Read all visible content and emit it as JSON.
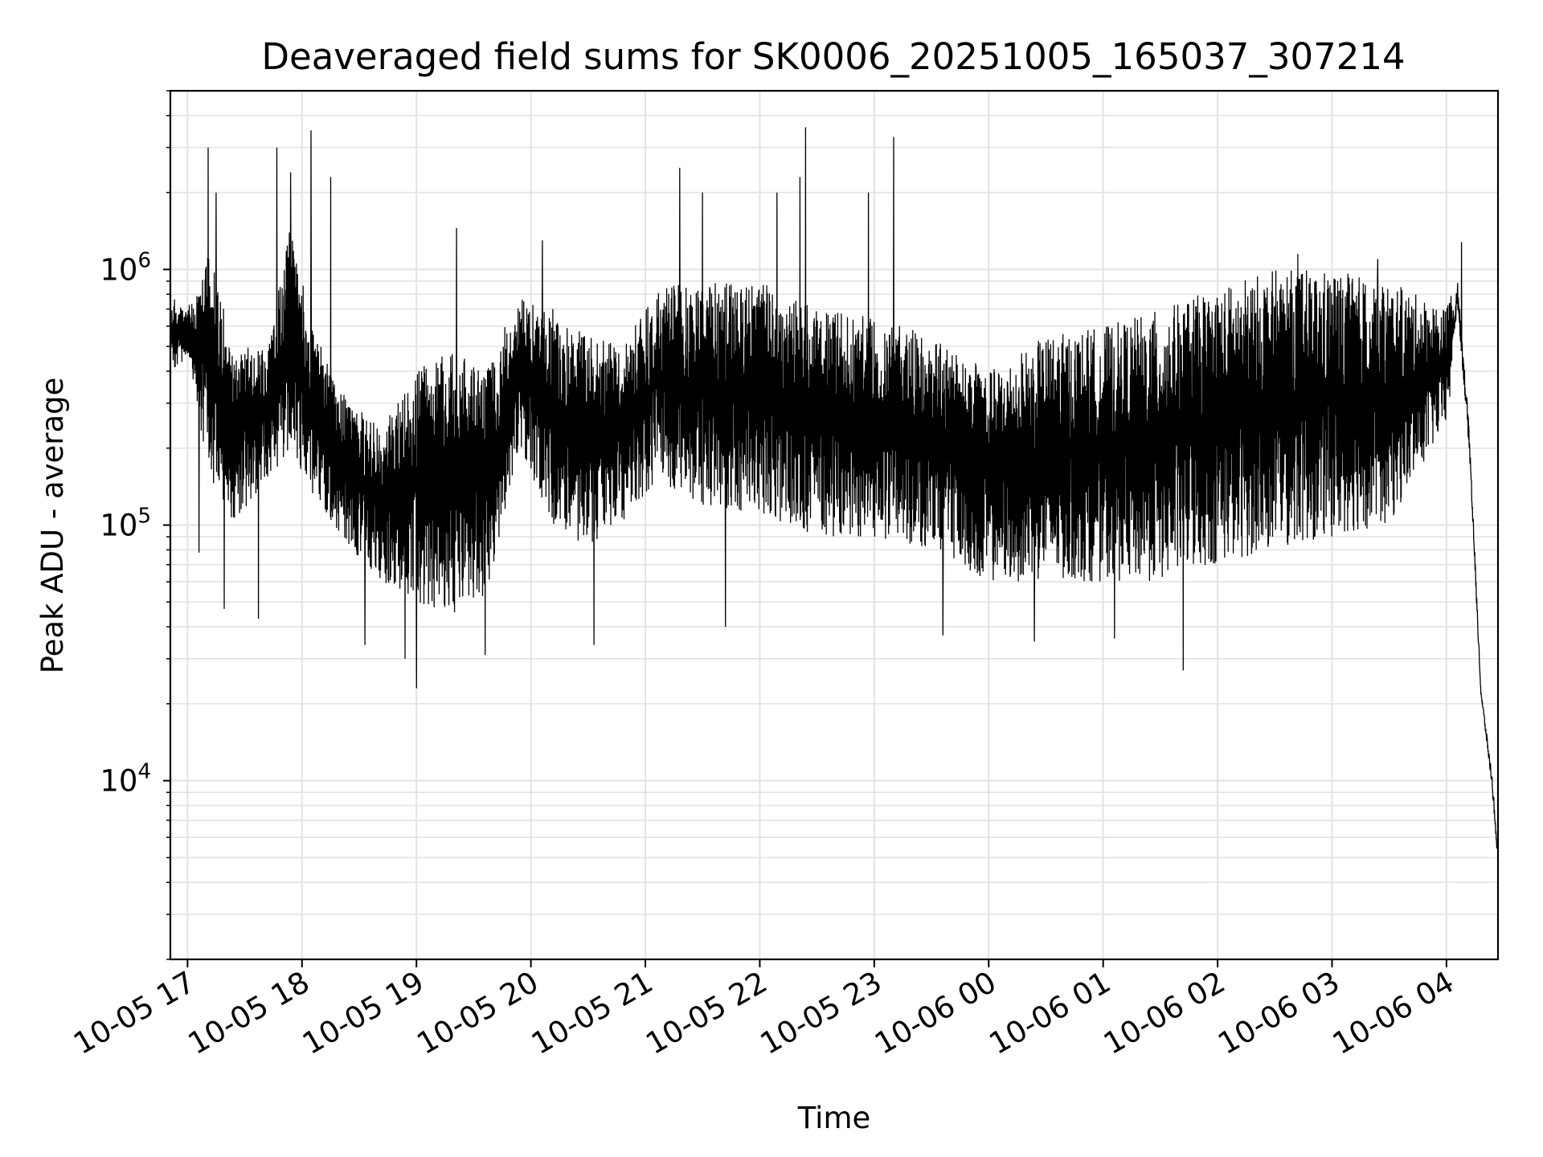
{
  "chart_data": {
    "type": "line",
    "title": "Deaveraged field sums for SK0006_20251005_165037_307214",
    "xlabel": "Time",
    "ylabel": "Peak ADU - average",
    "yscale": "log",
    "ylim": [
      2000,
      5000000
    ],
    "xlim_hours": [
      -0.15,
      11.45
    ],
    "x_ticks": [
      {
        "hour": 0,
        "label": "10-05 17"
      },
      {
        "hour": 1,
        "label": "10-05 18"
      },
      {
        "hour": 2,
        "label": "10-05 19"
      },
      {
        "hour": 3,
        "label": "10-05 20"
      },
      {
        "hour": 4,
        "label": "10-05 21"
      },
      {
        "hour": 5,
        "label": "10-05 22"
      },
      {
        "hour": 6,
        "label": "10-05 23"
      },
      {
        "hour": 7,
        "label": "10-06 00"
      },
      {
        "hour": 8,
        "label": "10-06 01"
      },
      {
        "hour": 9,
        "label": "10-06 02"
      },
      {
        "hour": 10,
        "label": "10-06 03"
      },
      {
        "hour": 11,
        "label": "10-06 04"
      }
    ],
    "y_ticks": [
      {
        "value": 10000,
        "base": "10",
        "exp": "4"
      },
      {
        "value": 100000,
        "base": "10",
        "exp": "5"
      },
      {
        "value": 1000000,
        "base": "10",
        "exp": "6"
      }
    ],
    "grid": true,
    "line_color": "#000000",
    "series": [
      {
        "name": "Peak ADU - average",
        "x_start_hour": -0.15,
        "x_end_hour": 11.45,
        "envelope_hours": [
          -0.15,
          0.0,
          0.2,
          0.4,
          0.7,
          0.9,
          1.1,
          1.4,
          1.7,
          2.0,
          2.3,
          2.6,
          2.9,
          3.2,
          3.5,
          3.8,
          4.1,
          4.5,
          5.0,
          5.5,
          6.0,
          6.5,
          7.0,
          7.5,
          8.0,
          8.5,
          9.0,
          9.5,
          10.0,
          10.5,
          11.0,
          11.1,
          11.2,
          11.3,
          11.4,
          11.45
        ],
        "envelope_low": [
          400000,
          450000,
          150000,
          100000,
          150000,
          200000,
          130000,
          80000,
          60000,
          50000,
          45000,
          50000,
          200000,
          100000,
          80000,
          100000,
          150000,
          120000,
          110000,
          90000,
          90000,
          80000,
          60000,
          60000,
          60000,
          60000,
          70000,
          80000,
          90000,
          100000,
          250000,
          500000,
          150000,
          20000,
          8000,
          4000
        ],
        "envelope_high": [
          800000,
          700000,
          1200000,
          500000,
          500000,
          1500000,
          600000,
          300000,
          250000,
          400000,
          500000,
          400000,
          800000,
          700000,
          550000,
          500000,
          850000,
          900000,
          900000,
          700000,
          650000,
          550000,
          400000,
          550000,
          600000,
          700000,
          850000,
          1000000,
          1000000,
          900000,
          700000,
          1250000,
          300000,
          25000,
          12000,
          6000
        ],
        "spikes": [
          {
            "hour": 0.18,
            "value": 3000000
          },
          {
            "hour": 0.25,
            "value": 2000000
          },
          {
            "hour": 0.1,
            "value": 78000
          },
          {
            "hour": 0.32,
            "value": 47000
          },
          {
            "hour": 0.62,
            "value": 43000
          },
          {
            "hour": 0.78,
            "value": 3000000
          },
          {
            "hour": 0.9,
            "value": 2400000
          },
          {
            "hour": 1.08,
            "value": 3500000
          },
          {
            "hour": 1.25,
            "value": 2300000
          },
          {
            "hour": 1.55,
            "value": 34000
          },
          {
            "hour": 1.9,
            "value": 30000
          },
          {
            "hour": 2.0,
            "value": 23000
          },
          {
            "hour": 2.35,
            "value": 1450000
          },
          {
            "hour": 2.6,
            "value": 31000
          },
          {
            "hour": 3.1,
            "value": 1300000
          },
          {
            "hour": 3.55,
            "value": 34000
          },
          {
            "hour": 4.3,
            "value": 2500000
          },
          {
            "hour": 4.5,
            "value": 2000000
          },
          {
            "hour": 4.7,
            "value": 40000
          },
          {
            "hour": 5.15,
            "value": 2000000
          },
          {
            "hour": 5.35,
            "value": 2300000
          },
          {
            "hour": 5.4,
            "value": 3600000
          },
          {
            "hour": 5.95,
            "value": 2000000
          },
          {
            "hour": 6.17,
            "value": 3300000
          },
          {
            "hour": 6.6,
            "value": 37000
          },
          {
            "hour": 7.4,
            "value": 35000
          },
          {
            "hour": 8.1,
            "value": 36000
          },
          {
            "hour": 8.7,
            "value": 27000
          },
          {
            "hour": 9.7,
            "value": 1150000
          },
          {
            "hour": 10.4,
            "value": 1100000
          },
          {
            "hour": 11.13,
            "value": 1280000
          }
        ]
      }
    ]
  }
}
